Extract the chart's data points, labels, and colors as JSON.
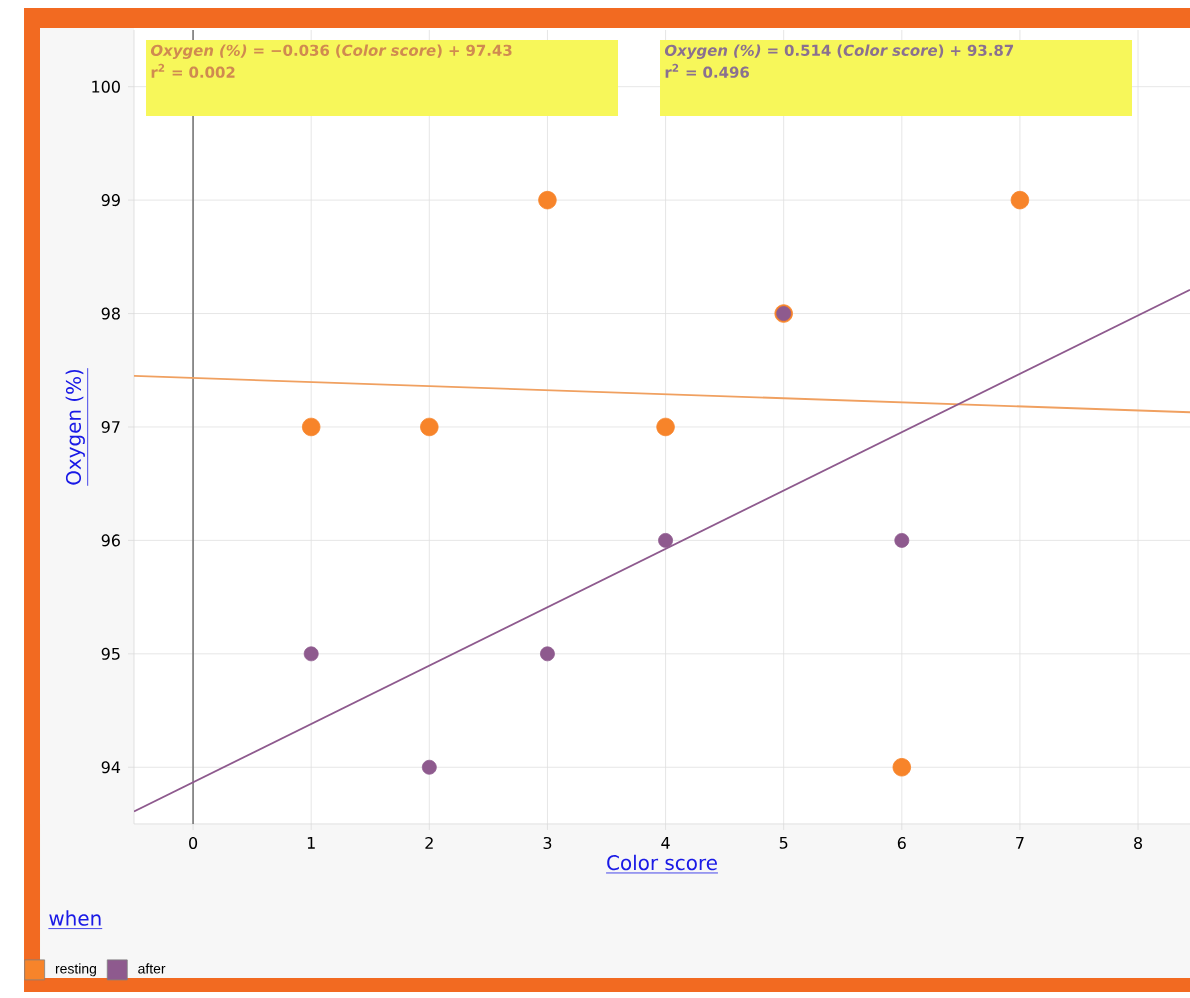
{
  "chart_data": {
    "type": "scatter",
    "xlabel": "Color score",
    "ylabel": "Oxygen (%)",
    "legend_title": "when",
    "xlim": [
      -0.5,
      8.44
    ],
    "ylim": [
      93.5,
      100.5
    ],
    "xticks": [
      0,
      1,
      2,
      3,
      4,
      5,
      6,
      7,
      8
    ],
    "yticks": [
      94,
      95,
      96,
      97,
      98,
      99,
      100
    ],
    "grid": true,
    "legend": "bottom left",
    "marker": "circle",
    "series": [
      {
        "name": "resting",
        "color": "#f7842a",
        "x": [
          1,
          2,
          3,
          4,
          5,
          6,
          7
        ],
        "values": [
          97,
          97,
          99,
          97,
          98,
          94,
          99
        ]
      },
      {
        "name": "after",
        "color": "#8e5a8e",
        "x": [
          1,
          2,
          3,
          4,
          5,
          6
        ],
        "values": [
          95,
          94,
          95,
          96,
          98,
          96
        ]
      },
      {
        "type": "line",
        "color": "#f0a060",
        "marker": "none",
        "x": [
          -0.5,
          8.44
        ],
        "values": [
          97.45,
          97.13
        ]
      },
      {
        "type": "line",
        "color": "#8e5a8e",
        "marker": "none",
        "x": [
          -0.5,
          8.44
        ],
        "values": [
          93.61,
          98.21
        ]
      }
    ],
    "ref_lines": [
      {
        "axis": "x",
        "value": 0,
        "color": "#777777"
      }
    ],
    "annotations": [
      "*Oxygen (%)* = −0.036 (*Color score*) + 97.43",
      "r$^{2}$ = 0.002",
      "*Oxygen (%)* = 0.514 (*Color score*) + 93.87",
      "r$^{2}$ = 0.496"
    ]
  }
}
